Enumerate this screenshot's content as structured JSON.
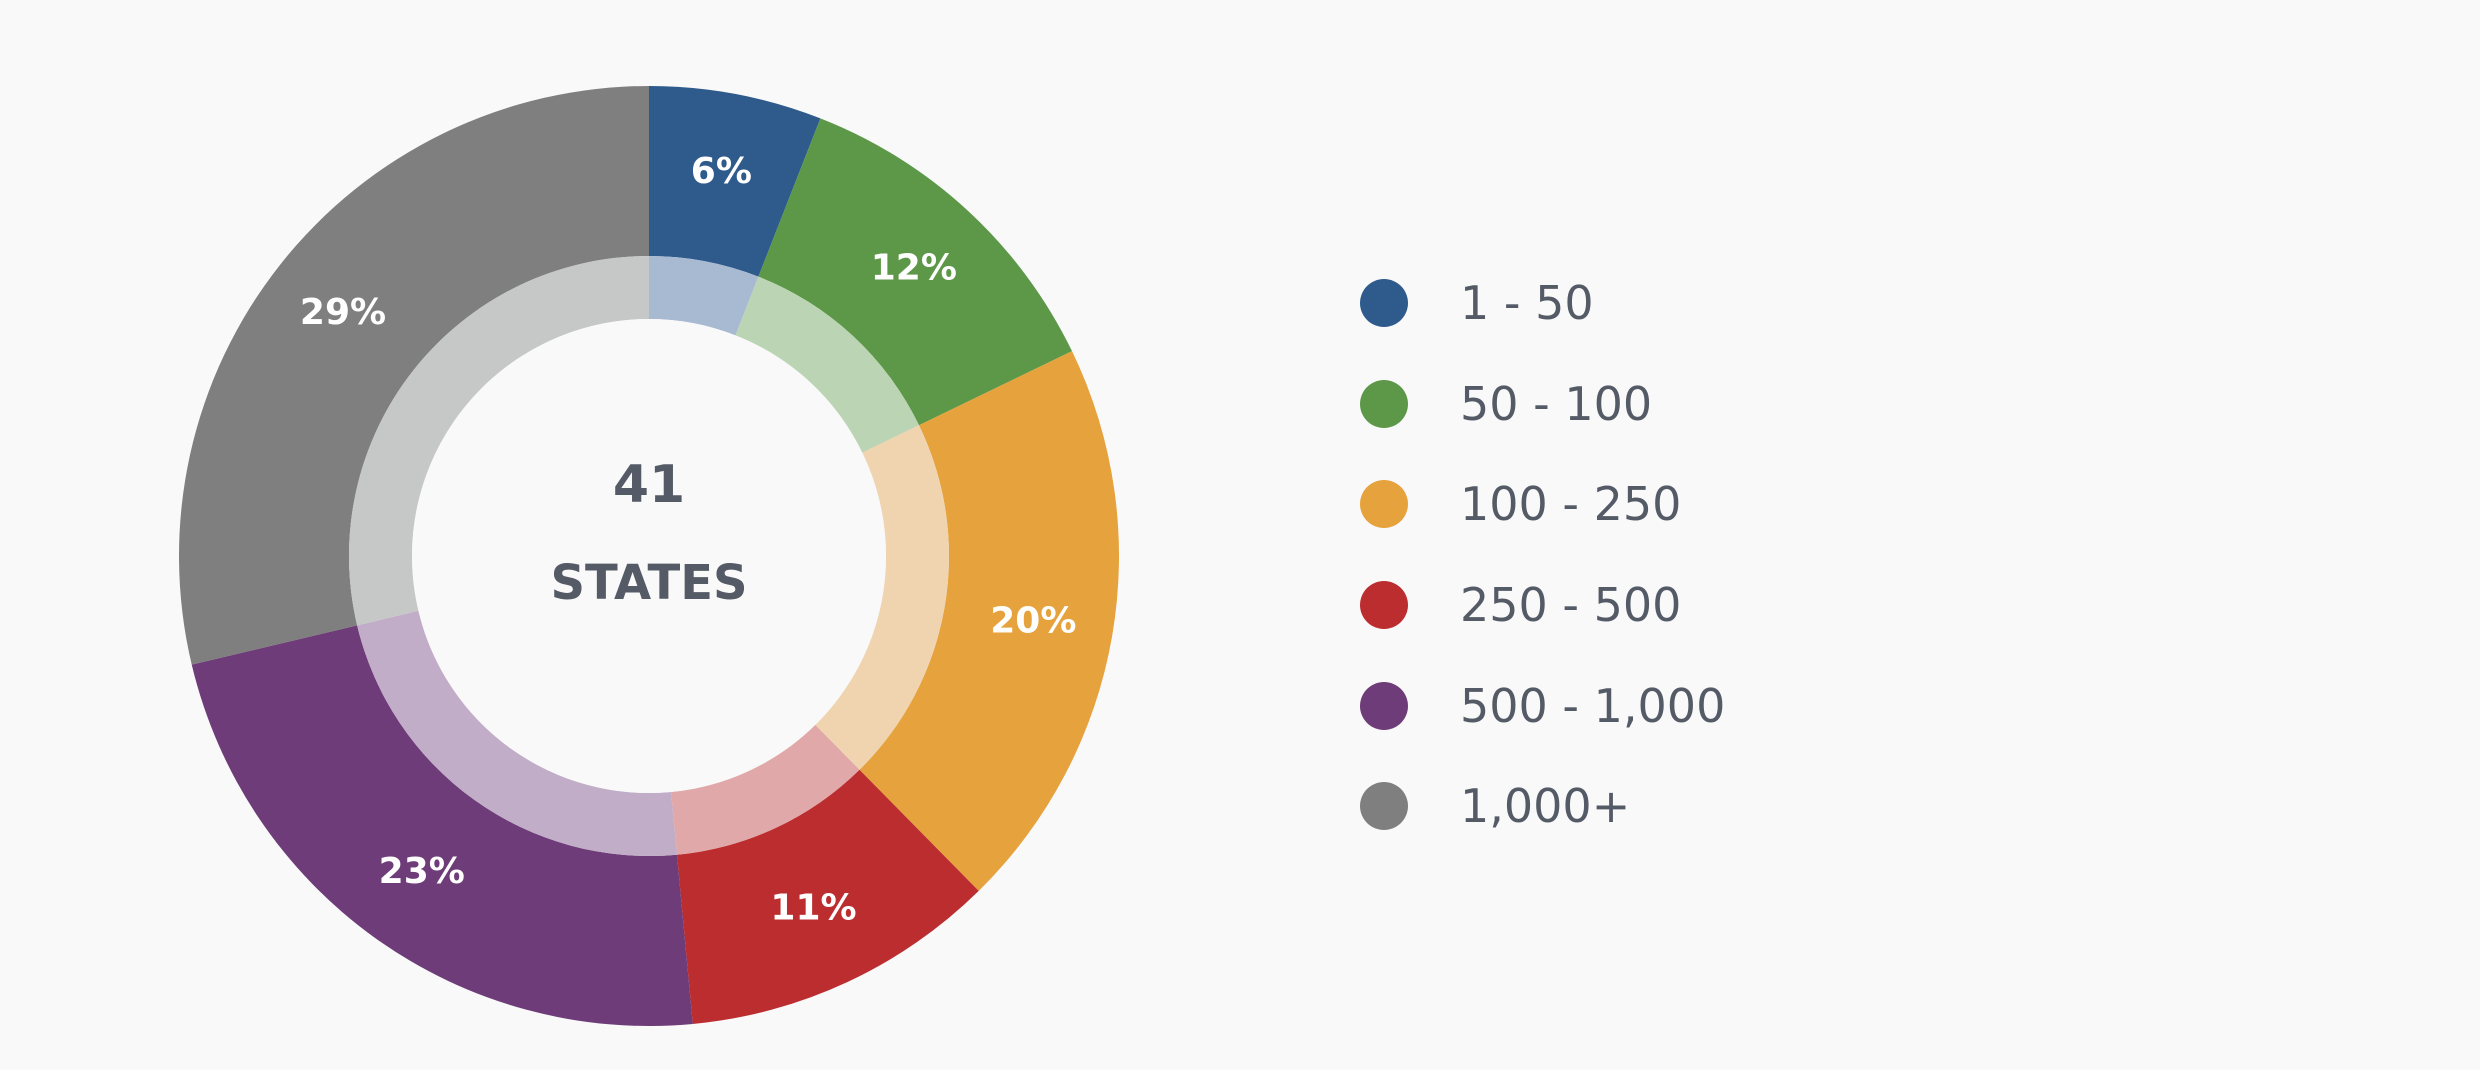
{
  "chart_data": {
    "type": "pie",
    "variant": "donut",
    "center": {
      "value": "41",
      "label": "STATES"
    },
    "categories": [
      "1 - 50",
      "50 - 100",
      "100 - 250",
      "250 - 500",
      "500 - 1,000",
      "1,000+"
    ],
    "values": [
      6,
      12,
      20,
      11,
      23,
      29
    ],
    "labels": [
      "6%",
      "12%",
      "20%",
      "11%",
      "23%",
      "29%"
    ],
    "colors": [
      "#2e5a8c",
      "#5d9848",
      "#e6a23c",
      "#bc2d30",
      "#6e3c78",
      "#7e7f7e"
    ],
    "inner_ring_colors": [
      "#a8b9d2",
      "#bbd4b4",
      "#f0d4b0",
      "#e0a8a8",
      "#c2adc8",
      "#c6c8c7"
    ],
    "start_angle": "12 o'clock",
    "direction": "clockwise",
    "legend_position": "right"
  }
}
